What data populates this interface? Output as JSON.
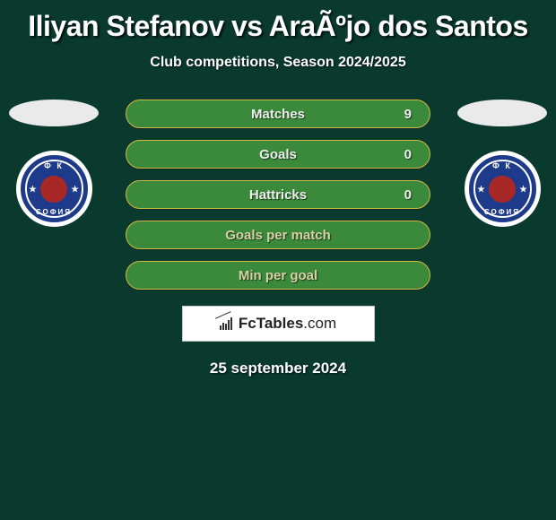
{
  "title": "Iliyan Stefanov vs AraÃºjo dos Santos",
  "subtitle": "Club competitions, Season 2024/2025",
  "stats": [
    {
      "label": "Matches",
      "right_value": "9",
      "alt": false
    },
    {
      "label": "Goals",
      "right_value": "0",
      "alt": false
    },
    {
      "label": "Hattricks",
      "right_value": "0",
      "alt": false
    },
    {
      "label": "Goals per match",
      "right_value": "",
      "alt": true
    },
    {
      "label": "Min per goal",
      "right_value": "",
      "alt": true
    }
  ],
  "club": {
    "top_text": "Ф К",
    "bottom_text": "СОФИЯ"
  },
  "logo": {
    "brand_bold": "FcTables",
    "brand_light": ".com"
  },
  "date": "25 september 2024",
  "colors": {
    "page_bg": "#0a3a2e",
    "row_bg": "#3b8a3b",
    "row_border": "#d4b843",
    "badge_bg": "#1e3a8a",
    "badge_center": "#a82828",
    "text": "#ffffff"
  }
}
